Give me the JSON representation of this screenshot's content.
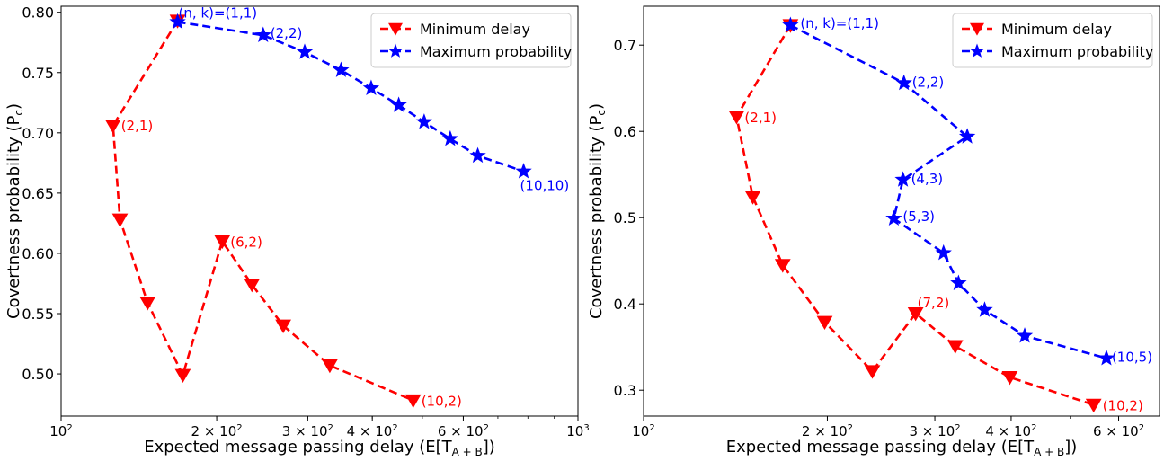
{
  "chart_data": [
    {
      "type": "line",
      "xscale": "log",
      "xlim": [
        100,
        1000
      ],
      "ylim": [
        0.465,
        0.805
      ],
      "xlabel": "Expected message passing delay (E[T",
      "xlabel_sub": "A + B",
      "xlabel_end": "])",
      "ylabel": "Covertness probability (P",
      "ylabel_sub": "c",
      "ylabel_end": ")",
      "xticks": [
        {
          "value": 100,
          "base": "10",
          "exp": "2"
        },
        {
          "value": 200,
          "base": "2 × 10",
          "exp": "2"
        },
        {
          "value": 300,
          "base": "3 × 10",
          "exp": "2"
        },
        {
          "value": 400,
          "base": "4 × 10",
          "exp": "2"
        },
        {
          "value": 600,
          "base": "6 × 10",
          "exp": "2"
        },
        {
          "value": 1000,
          "base": "10",
          "exp": "3"
        }
      ],
      "yticks": [
        {
          "value": 0.5,
          "label": "0.50"
        },
        {
          "value": 0.55,
          "label": "0.55"
        },
        {
          "value": 0.6,
          "label": "0.60"
        },
        {
          "value": 0.65,
          "label": "0.65"
        },
        {
          "value": 0.7,
          "label": "0.70"
        },
        {
          "value": 0.75,
          "label": "0.75"
        },
        {
          "value": 0.8,
          "label": "0.80"
        }
      ],
      "legend_position": "top-right",
      "series": [
        {
          "name": "Minimum delay",
          "color": "#ff0000",
          "marker": "triangle-down",
          "x": [
            168,
            126,
            130,
            147,
            172,
            205,
            234,
            269,
            331,
            480
          ],
          "y": [
            0.793,
            0.706,
            0.628,
            0.559,
            0.499,
            0.61,
            0.574,
            0.54,
            0.507,
            0.478
          ],
          "annotations": [
            {
              "index": 1,
              "text": "(2,1)"
            },
            {
              "index": 5,
              "text": "(6,2)"
            },
            {
              "index": 9,
              "text": "(10,2)"
            }
          ]
        },
        {
          "name": "Maximum probability",
          "color": "#0000ff",
          "marker": "star",
          "x": [
            168,
            246,
            296,
            348,
            398,
            450,
            504,
            566,
            640,
            785
          ],
          "y": [
            0.792,
            0.781,
            0.767,
            0.752,
            0.737,
            0.723,
            0.709,
            0.695,
            0.681,
            0.668
          ],
          "annotations": [
            {
              "index": 0,
              "text": "(n, k)=(1,1)"
            },
            {
              "index": 1,
              "text": "(2,2)"
            },
            {
              "index": 9,
              "text": "(10,10)"
            }
          ]
        }
      ]
    },
    {
      "type": "line",
      "xscale": "log",
      "xlim": [
        100,
        700
      ],
      "ylim": [
        0.27,
        0.745
      ],
      "xlabel": "Expected message passing delay (E[T",
      "xlabel_sub": "A + B",
      "xlabel_end": "])",
      "ylabel": "Covertness probability (P",
      "ylabel_sub": "c",
      "ylabel_end": ")",
      "xticks": [
        {
          "value": 100,
          "base": "10",
          "exp": "2"
        },
        {
          "value": 200,
          "base": "2 × 10",
          "exp": "2"
        },
        {
          "value": 300,
          "base": "3 × 10",
          "exp": "2"
        },
        {
          "value": 400,
          "base": "4 × 10",
          "exp": "2"
        },
        {
          "value": 600,
          "base": "6 × 10",
          "exp": "2"
        }
      ],
      "yticks": [
        {
          "value": 0.3,
          "label": "0.3"
        },
        {
          "value": 0.4,
          "label": "0.4"
        },
        {
          "value": 0.5,
          "label": "0.5"
        },
        {
          "value": 0.6,
          "label": "0.6"
        },
        {
          "value": 0.7,
          "label": "0.7"
        }
      ],
      "legend_position": "top-right",
      "series": [
        {
          "name": "Minimum delay",
          "color": "#ff0000",
          "marker": "triangle-down",
          "x": [
            174,
            142,
            151,
            169,
            198,
            237,
            279,
            324,
            398,
            546
          ],
          "y": [
            0.723,
            0.617,
            0.524,
            0.445,
            0.379,
            0.322,
            0.389,
            0.351,
            0.315,
            0.283
          ],
          "annotations": [
            {
              "index": 1,
              "text": "(2,1)"
            },
            {
              "index": 6,
              "text": "(7,2)"
            },
            {
              "index": 9,
              "text": "(10,2)"
            }
          ]
        },
        {
          "name": "Maximum probability",
          "color": "#0000ff",
          "marker": "star",
          "x": [
            174,
            267,
            339,
            266,
            257,
            310,
            328,
            362,
            421,
            573
          ],
          "y": [
            0.723,
            0.656,
            0.594,
            0.544,
            0.499,
            0.459,
            0.424,
            0.393,
            0.363,
            0.337
          ],
          "annotations": [
            {
              "index": 0,
              "text": "(n, k)=(1,1)"
            },
            {
              "index": 1,
              "text": "(2,2)"
            },
            {
              "index": 3,
              "text": "(4,3)"
            },
            {
              "index": 4,
              "text": "(5,3)"
            },
            {
              "index": 9,
              "text": "(10,5)"
            }
          ]
        }
      ]
    }
  ]
}
